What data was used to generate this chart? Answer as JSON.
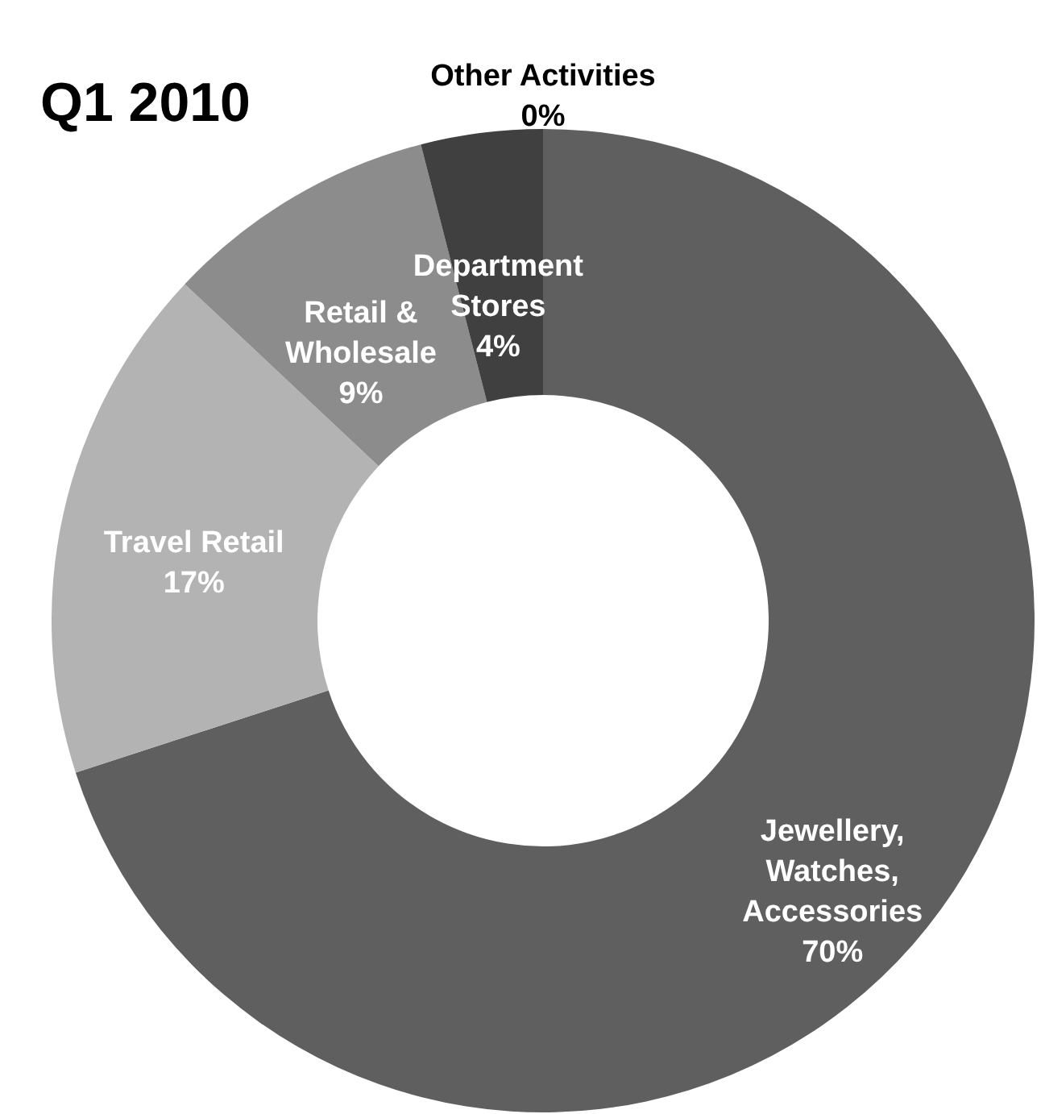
{
  "chart_data": {
    "type": "donut",
    "title": "Q1 2010",
    "categories": [
      "Jewellery, Watches, Accessories",
      "Travel Retail",
      "Retail & Wholesale",
      "Department Stores",
      "Other Activities"
    ],
    "values": [
      70,
      17,
      9,
      4,
      0
    ],
    "colors": [
      "#5f5f5f",
      "#b3b3b3",
      "#8c8c8c",
      "#404040",
      "#a6a6a6"
    ],
    "value_labels": [
      "70%",
      "17%",
      "9%",
      "4%",
      "0%"
    ]
  }
}
